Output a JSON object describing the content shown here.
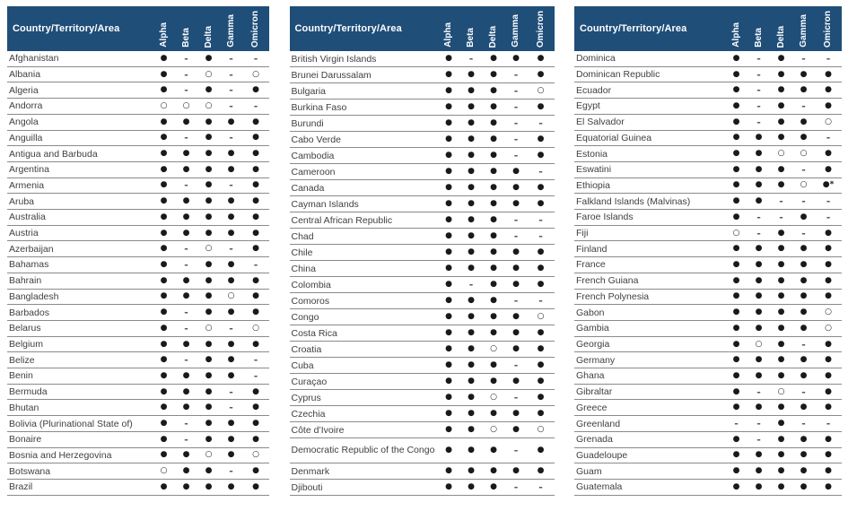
{
  "colors": {
    "header_bg": "#1f4e79",
    "header_text": "#ffffff",
    "row_line": "#8a8a8a",
    "row_text": "#404040",
    "mark": "#1a1a1a",
    "dash": "#595959"
  },
  "columns": {
    "country": "Country/Territory/Area",
    "variants": [
      "Alpha",
      "Beta",
      "Delta",
      "Gamma",
      "Omicron"
    ]
  },
  "tables": [
    {
      "rows": [
        {
          "name": "Afghanistan",
          "symbols": [
            "●",
            "-",
            "●",
            "-",
            "-"
          ]
        },
        {
          "name": "Albania",
          "symbols": [
            "●",
            "-",
            "○",
            "-",
            "○"
          ]
        },
        {
          "name": "Algeria",
          "symbols": [
            "●",
            "-",
            "●",
            "-",
            "●"
          ]
        },
        {
          "name": "Andorra",
          "symbols": [
            "○",
            "○",
            "○",
            "-",
            "-"
          ]
        },
        {
          "name": "Angola",
          "symbols": [
            "●",
            "●",
            "●",
            "●",
            "●"
          ]
        },
        {
          "name": "Anguilla",
          "symbols": [
            "●",
            "-",
            "●",
            "-",
            "●"
          ]
        },
        {
          "name": "Antigua and Barbuda",
          "symbols": [
            "●",
            "●",
            "●",
            "●",
            "●"
          ]
        },
        {
          "name": "Argentina",
          "symbols": [
            "●",
            "●",
            "●",
            "●",
            "●"
          ]
        },
        {
          "name": "Armenia",
          "symbols": [
            "●",
            "-",
            "●",
            "-",
            "●"
          ]
        },
        {
          "name": "Aruba",
          "symbols": [
            "●",
            "●",
            "●",
            "●",
            "●"
          ]
        },
        {
          "name": "Australia",
          "symbols": [
            "●",
            "●",
            "●",
            "●",
            "●"
          ]
        },
        {
          "name": "Austria",
          "symbols": [
            "●",
            "●",
            "●",
            "●",
            "●"
          ]
        },
        {
          "name": "Azerbaijan",
          "symbols": [
            "●",
            "-",
            "○",
            "-",
            "●"
          ]
        },
        {
          "name": "Bahamas",
          "symbols": [
            "●",
            "-",
            "●",
            "●",
            "-"
          ]
        },
        {
          "name": "Bahrain",
          "symbols": [
            "●",
            "●",
            "●",
            "●",
            "●"
          ]
        },
        {
          "name": "Bangladesh",
          "symbols": [
            "●",
            "●",
            "●",
            "○",
            "●"
          ]
        },
        {
          "name": "Barbados",
          "symbols": [
            "●",
            "-",
            "●",
            "●",
            "●"
          ]
        },
        {
          "name": "Belarus",
          "symbols": [
            "●",
            "-",
            "○",
            "-",
            "○"
          ]
        },
        {
          "name": "Belgium",
          "symbols": [
            "●",
            "●",
            "●",
            "●",
            "●"
          ]
        },
        {
          "name": "Belize",
          "symbols": [
            "●",
            "-",
            "●",
            "●",
            "-"
          ]
        },
        {
          "name": "Benin",
          "symbols": [
            "●",
            "●",
            "●",
            "●",
            "-"
          ]
        },
        {
          "name": "Bermuda",
          "symbols": [
            "●",
            "●",
            "●",
            "-",
            "●"
          ]
        },
        {
          "name": "Bhutan",
          "symbols": [
            "●",
            "●",
            "●",
            "-",
            "●"
          ]
        },
        {
          "name": "Bolivia (Plurinational State of)",
          "symbols": [
            "●",
            "-",
            "●",
            "●",
            "●"
          ]
        },
        {
          "name": "Bonaire",
          "symbols": [
            "●",
            "-",
            "●",
            "●",
            "●"
          ]
        },
        {
          "name": "Bosnia and Herzegovina",
          "symbols": [
            "●",
            "●",
            "○",
            "●",
            "○"
          ]
        },
        {
          "name": "Botswana",
          "symbols": [
            "○",
            "●",
            "●",
            "-",
            "●"
          ]
        },
        {
          "name": "Brazil",
          "symbols": [
            "●",
            "●",
            "●",
            "●",
            "●"
          ]
        }
      ]
    },
    {
      "rows": [
        {
          "name": "British Virgin Islands",
          "symbols": [
            "●",
            "-",
            "●",
            "●",
            "●"
          ]
        },
        {
          "name": "Brunei Darussalam",
          "symbols": [
            "●",
            "●",
            "●",
            "-",
            "●"
          ]
        },
        {
          "name": "Bulgaria",
          "symbols": [
            "●",
            "●",
            "●",
            "-",
            "○"
          ]
        },
        {
          "name": "Burkina Faso",
          "symbols": [
            "●",
            "●",
            "●",
            "-",
            "●"
          ]
        },
        {
          "name": "Burundi",
          "symbols": [
            "●",
            "●",
            "●",
            "-",
            "-"
          ]
        },
        {
          "name": "Cabo Verde",
          "symbols": [
            "●",
            "●",
            "●",
            "-",
            "●"
          ]
        },
        {
          "name": "Cambodia",
          "symbols": [
            "●",
            "●",
            "●",
            "-",
            "●"
          ]
        },
        {
          "name": "Cameroon",
          "symbols": [
            "●",
            "●",
            "●",
            "●",
            "-"
          ]
        },
        {
          "name": "Canada",
          "symbols": [
            "●",
            "●",
            "●",
            "●",
            "●"
          ]
        },
        {
          "name": "Cayman Islands",
          "symbols": [
            "●",
            "●",
            "●",
            "●",
            "●"
          ]
        },
        {
          "name": "Central African Republic",
          "symbols": [
            "●",
            "●",
            "●",
            "-",
            "-"
          ]
        },
        {
          "name": "Chad",
          "symbols": [
            "●",
            "●",
            "●",
            "-",
            "-"
          ]
        },
        {
          "name": "Chile",
          "symbols": [
            "●",
            "●",
            "●",
            "●",
            "●"
          ]
        },
        {
          "name": "China",
          "symbols": [
            "●",
            "●",
            "●",
            "●",
            "●"
          ]
        },
        {
          "name": "Colombia",
          "symbols": [
            "●",
            "-",
            "●",
            "●",
            "●"
          ]
        },
        {
          "name": "Comoros",
          "symbols": [
            "●",
            "●",
            "●",
            "-",
            "-"
          ]
        },
        {
          "name": "Congo",
          "symbols": [
            "●",
            "●",
            "●",
            "●",
            "○"
          ]
        },
        {
          "name": "Costa Rica",
          "symbols": [
            "●",
            "●",
            "●",
            "●",
            "●"
          ]
        },
        {
          "name": "Croatia",
          "symbols": [
            "●",
            "●",
            "○",
            "●",
            "●"
          ]
        },
        {
          "name": "Cuba",
          "symbols": [
            "●",
            "●",
            "●",
            "-",
            "●"
          ]
        },
        {
          "name": "Curaçao",
          "symbols": [
            "●",
            "●",
            "●",
            "●",
            "●"
          ]
        },
        {
          "name": "Cyprus",
          "symbols": [
            "●",
            "●",
            "○",
            "-",
            "●"
          ]
        },
        {
          "name": "Czechia",
          "symbols": [
            "●",
            "●",
            "●",
            "●",
            "●"
          ]
        },
        {
          "name": "Côte d’Ivoire",
          "symbols": [
            "●",
            "●",
            "○",
            "●",
            "○"
          ]
        },
        {
          "name": "Democratic Republic of the Congo",
          "two_line": true,
          "symbols": [
            "●",
            "●",
            "●",
            "-",
            "●"
          ]
        },
        {
          "name": "Denmark",
          "symbols": [
            "●",
            "●",
            "●",
            "●",
            "●"
          ]
        },
        {
          "name": "Djibouti",
          "symbols": [
            "●",
            "●",
            "●",
            "-",
            "-"
          ]
        }
      ]
    },
    {
      "rows": [
        {
          "name": "Dominica",
          "symbols": [
            "●",
            "-",
            "●",
            "-",
            "-"
          ]
        },
        {
          "name": "Dominican Republic",
          "symbols": [
            "●",
            "-",
            "●",
            "●",
            "●"
          ]
        },
        {
          "name": "Ecuador",
          "symbols": [
            "●",
            "-",
            "●",
            "●",
            "●"
          ]
        },
        {
          "name": "Egypt",
          "symbols": [
            "●",
            "-",
            "●",
            "-",
            "●"
          ]
        },
        {
          "name": "El Salvador",
          "symbols": [
            "●",
            "-",
            "●",
            "●",
            "○"
          ]
        },
        {
          "name": "Equatorial Guinea",
          "symbols": [
            "●",
            "●",
            "●",
            "●",
            "-"
          ]
        },
        {
          "name": "Estonia",
          "symbols": [
            "●",
            "●",
            "○",
            "○",
            "●"
          ]
        },
        {
          "name": "Eswatini",
          "symbols": [
            "●",
            "●",
            "●",
            "-",
            "●"
          ]
        },
        {
          "name": "Ethiopia",
          "symbols": [
            "●",
            "●",
            "●",
            "○",
            "●*"
          ]
        },
        {
          "name": "Falkland Islands (Malvinas)",
          "symbols": [
            "●",
            "●",
            "-",
            "-",
            "-"
          ]
        },
        {
          "name": "Faroe Islands",
          "symbols": [
            "●",
            "-",
            "-",
            "●",
            "-"
          ]
        },
        {
          "name": "Fiji",
          "symbols": [
            "○",
            "-",
            "●",
            "-",
            "●"
          ]
        },
        {
          "name": "Finland",
          "symbols": [
            "●",
            "●",
            "●",
            "●",
            "●"
          ]
        },
        {
          "name": "France",
          "symbols": [
            "●",
            "●",
            "●",
            "●",
            "●"
          ]
        },
        {
          "name": "French Guiana",
          "symbols": [
            "●",
            "●",
            "●",
            "●",
            "●"
          ]
        },
        {
          "name": "French Polynesia",
          "symbols": [
            "●",
            "●",
            "●",
            "●",
            "●"
          ]
        },
        {
          "name": "Gabon",
          "symbols": [
            "●",
            "●",
            "●",
            "●",
            "○"
          ]
        },
        {
          "name": "Gambia",
          "symbols": [
            "●",
            "●",
            "●",
            "●",
            "○"
          ]
        },
        {
          "name": "Georgia",
          "symbols": [
            "●",
            "○",
            "●",
            "-",
            "●"
          ]
        },
        {
          "name": "Germany",
          "symbols": [
            "●",
            "●",
            "●",
            "●",
            "●"
          ]
        },
        {
          "name": "Ghana",
          "symbols": [
            "●",
            "●",
            "●",
            "●",
            "●"
          ]
        },
        {
          "name": "Gibraltar",
          "symbols": [
            "●",
            "-",
            "○",
            "-",
            "●"
          ]
        },
        {
          "name": "Greece",
          "symbols": [
            "●",
            "●",
            "●",
            "●",
            "●"
          ]
        },
        {
          "name": "Greenland",
          "symbols": [
            "-",
            "-",
            "●",
            "-",
            "-"
          ]
        },
        {
          "name": "Grenada",
          "symbols": [
            "●",
            "-",
            "●",
            "●",
            "●"
          ]
        },
        {
          "name": "Guadeloupe",
          "symbols": [
            "●",
            "●",
            "●",
            "●",
            "●"
          ]
        },
        {
          "name": "Guam",
          "symbols": [
            "●",
            "●",
            "●",
            "●",
            "●"
          ]
        },
        {
          "name": "Guatemala",
          "symbols": [
            "●",
            "●",
            "●",
            "●",
            "●"
          ]
        }
      ]
    }
  ]
}
